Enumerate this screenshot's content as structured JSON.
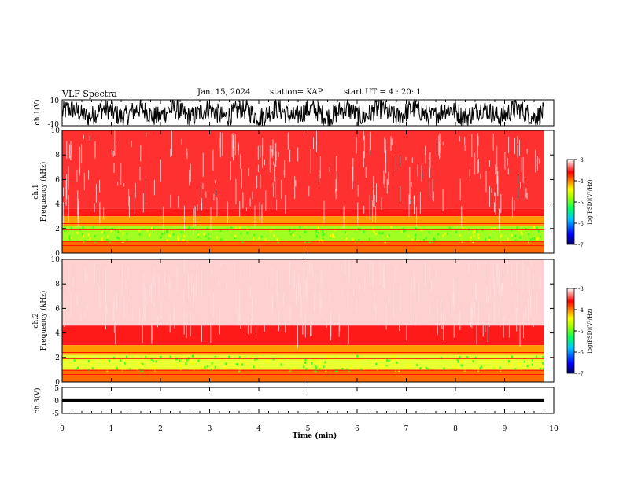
{
  "header": {
    "title": "VLF Spectra",
    "date": "Jan. 15, 2024",
    "station": "station= KAP",
    "start": "start UT =  4 : 20: 1"
  },
  "chart_data": [
    {
      "type": "line",
      "panel": "ch1-waveform",
      "ylabel": "ch.1(V)",
      "ylim": [
        -10,
        10
      ],
      "yticks": [
        "10",
        "-10"
      ],
      "xlim": [
        0,
        10
      ],
      "trace_color": "#000000",
      "data_end_min": 9.8
    },
    {
      "type": "heatmap",
      "panel": "ch1-spectrogram",
      "ylabel": "ch.1\nFrequency (kHz)",
      "ylim": [
        0,
        10
      ],
      "yticks": [
        "0",
        "2",
        "4",
        "6",
        "8",
        "10"
      ],
      "xlim": [
        0,
        10
      ],
      "data_end_min": 9.8,
      "colorbar": {
        "label": "log(PSD)(V²/Hz)",
        "range": [
          -7,
          -3
        ],
        "ticks": [
          "-3",
          "-4",
          "-5",
          "-6",
          "-7"
        ]
      }
    },
    {
      "type": "heatmap",
      "panel": "ch2-spectrogram",
      "ylabel": "ch.2\nFrequency (kHz)",
      "ylim": [
        0,
        10
      ],
      "yticks": [
        "0",
        "2",
        "4",
        "6",
        "8",
        "10"
      ],
      "xlim": [
        0,
        10
      ],
      "data_end_min": 9.8,
      "colorbar": {
        "label": "log(PSD)(V²/Hz)",
        "range": [
          -7,
          -3
        ],
        "ticks": [
          "-3",
          "-4",
          "-5",
          "-6",
          "-7"
        ]
      }
    },
    {
      "type": "line",
      "panel": "ch3-waveform",
      "ylabel": "ch.3(V)",
      "ylim": [
        -5,
        5
      ],
      "yticks": [
        "5",
        "0",
        "-5"
      ],
      "xlim": [
        0,
        10
      ],
      "trace_level_V": 0,
      "data_end_min": 9.8
    }
  ],
  "xaxis": {
    "label": "Time (min)",
    "ticks": [
      "0",
      "1",
      "2",
      "3",
      "4",
      "5",
      "6",
      "7",
      "8",
      "9",
      "10"
    ]
  },
  "colors": {
    "colormap": [
      "#000080",
      "#0000ff",
      "#00c8ff",
      "#00ff80",
      "#80ff00",
      "#ffff00",
      "#ff8000",
      "#ff0000",
      "#ffffff"
    ]
  }
}
